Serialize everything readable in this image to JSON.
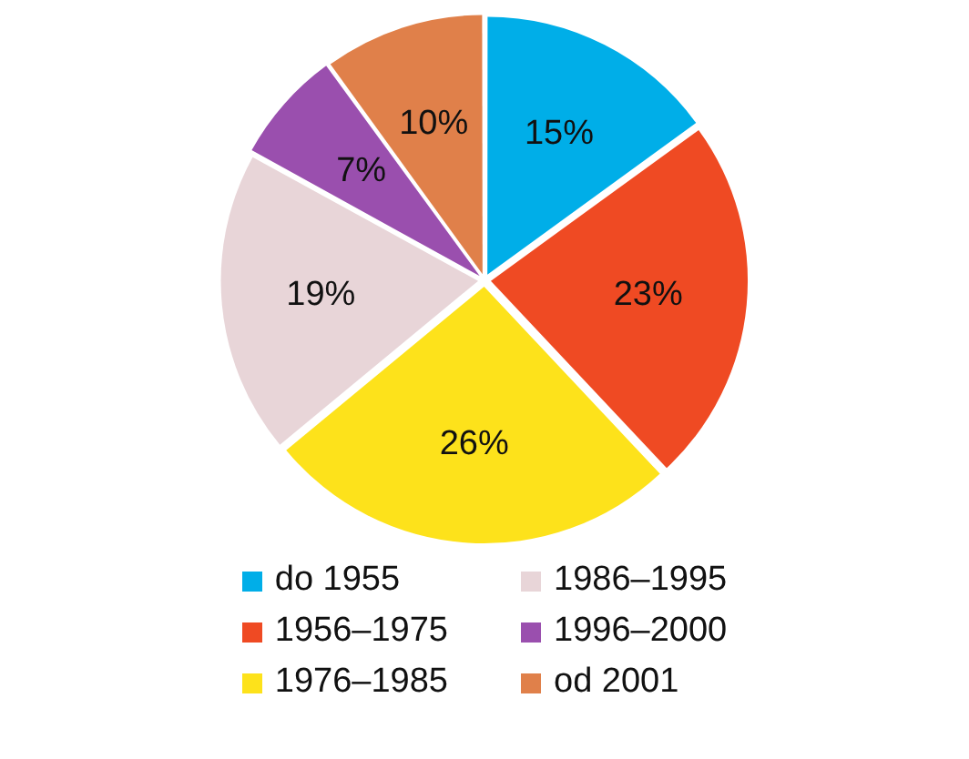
{
  "chart_data": {
    "type": "pie",
    "categories": [
      "do 1955",
      "1956–1975",
      "1976–1985",
      "1986–1995",
      "1996–2000",
      "od 2001"
    ],
    "values": [
      15,
      23,
      26,
      19,
      7,
      10
    ],
    "value_labels": [
      "15%",
      "23%",
      "26%",
      "19%",
      "7%",
      "10%"
    ],
    "colors": [
      "#00aee8",
      "#ef4a23",
      "#fde21b",
      "#e8d5d8",
      "#9a4fae",
      "#e0804a"
    ],
    "legend": "bottom"
  }
}
